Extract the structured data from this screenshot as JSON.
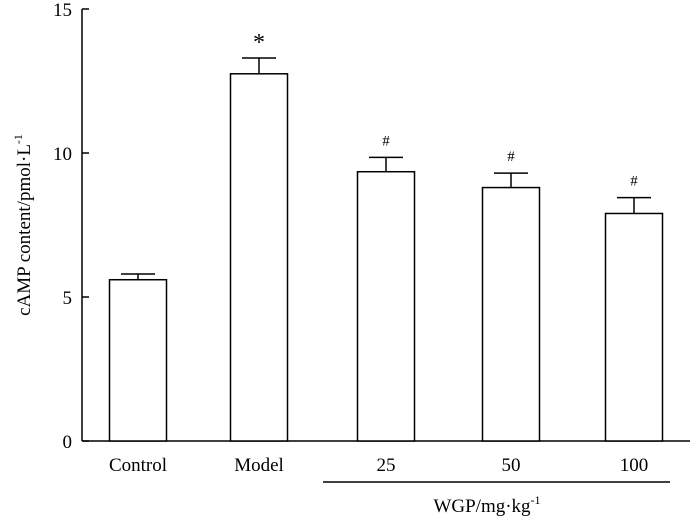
{
  "chart_data": {
    "type": "bar",
    "categories": [
      "Control",
      "Model",
      "25",
      "50",
      "100"
    ],
    "values": [
      5.6,
      12.75,
      9.35,
      8.8,
      7.9
    ],
    "errors": [
      0.2,
      0.55,
      0.5,
      0.5,
      0.55
    ],
    "annotations": [
      "",
      "*",
      "#",
      "#",
      "#"
    ],
    "group_label": "WGP/mg·kg",
    "group_label_superscript": "-1",
    "ylabel": "cAMP content/pmol·L",
    "ylabel_superscript": "-1",
    "ylim": [
      0,
      15
    ],
    "yticks": [
      0,
      5,
      10,
      15
    ],
    "grid": false,
    "bar_color": "#ffffff",
    "edge_color": "#000000"
  }
}
